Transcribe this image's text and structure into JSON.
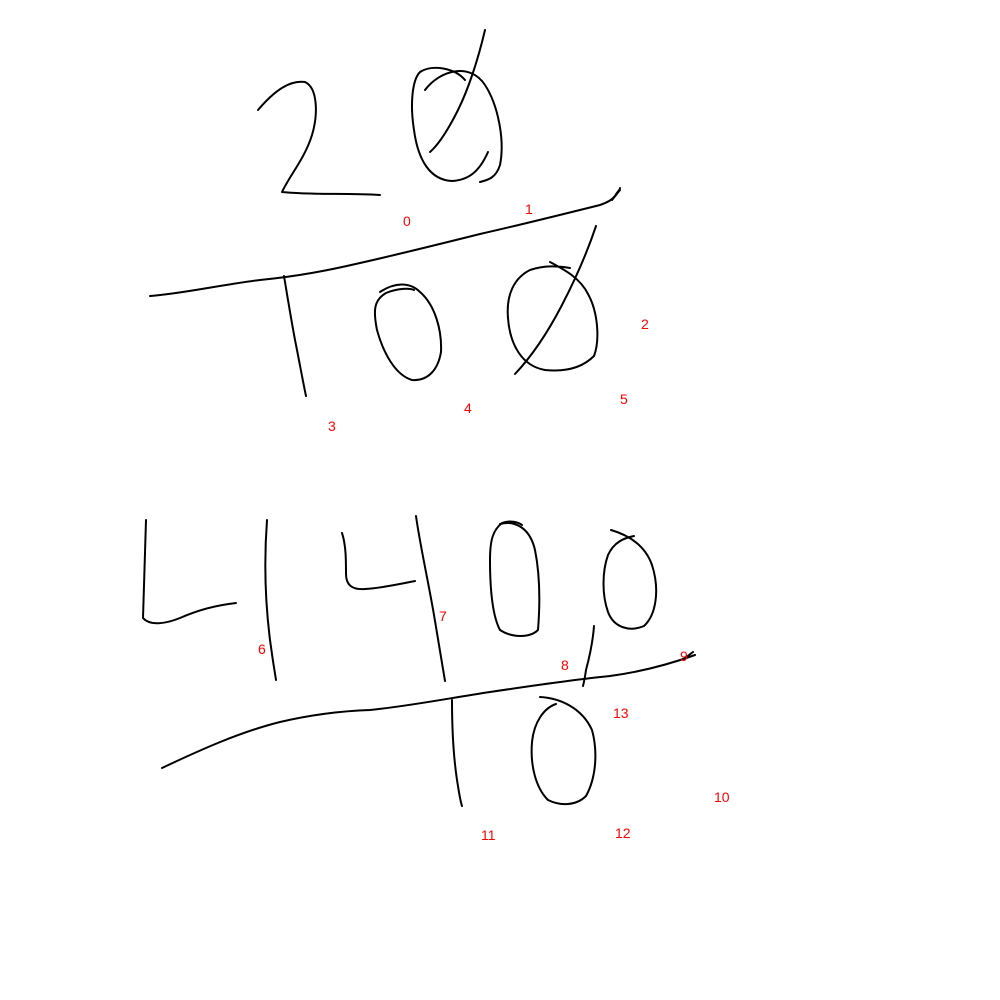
{
  "colors": {
    "background": "#ffffff",
    "ink": "#000000",
    "label": "#ff0000"
  },
  "stroke_labels": [
    "0",
    "1",
    "2",
    "3",
    "4",
    "5",
    "6",
    "7",
    "8",
    "9",
    "10",
    "11",
    "12",
    "13"
  ]
}
